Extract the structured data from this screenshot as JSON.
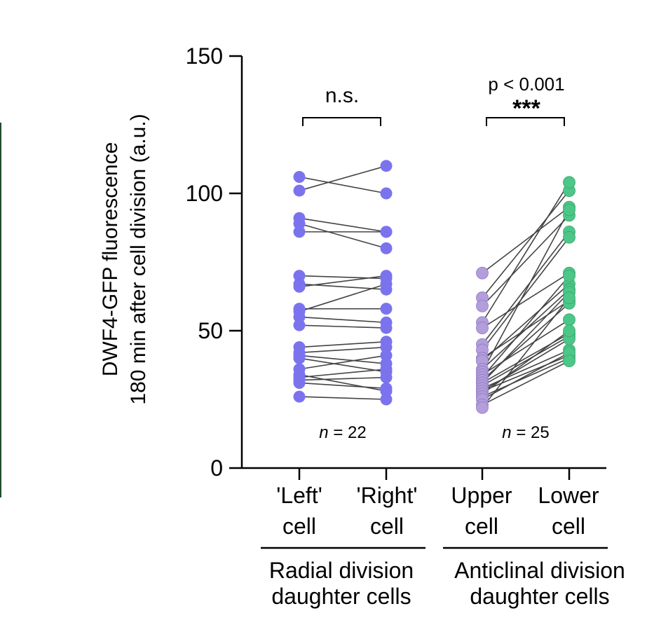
{
  "chart_data": {
    "type": "scatter",
    "ylabel_line1": "DWF4-GFP fluorescence",
    "ylabel_line2": "180 min after cell division (a.u.)",
    "ylim": [
      0,
      150
    ],
    "yticks": [
      "0",
      "50",
      "100",
      "150"
    ],
    "categories": [
      {
        "line1": "'Left'",
        "line2": "cell"
      },
      {
        "line1": "'Right'",
        "line2": "cell"
      },
      {
        "line1": "Upper",
        "line2": "cell"
      },
      {
        "line1": "Lower",
        "line2": "cell"
      }
    ],
    "groups": [
      {
        "line1": "Radial division",
        "line2": "daughter cells"
      },
      {
        "line1": "Anticlinal division",
        "line2": "daughter cells"
      }
    ],
    "annotations": {
      "radial_sig": "n.s.",
      "anticlinal_p": "p < 0.001",
      "anticlinal_stars": "***"
    },
    "n_labels": [
      {
        "italic": "n",
        "rest": " = 22"
      },
      {
        "italic": "n",
        "rest": " = 25"
      }
    ],
    "colors": {
      "radial": "#7B73EE",
      "upper": "#B39DDB",
      "lower": "#4CC787",
      "line": "#444444"
    },
    "pairs": {
      "radial": [
        [
          106,
          100
        ],
        [
          101,
          110
        ],
        [
          91,
          86
        ],
        [
          89,
          80
        ],
        [
          86,
          86
        ],
        [
          70,
          69
        ],
        [
          67,
          65
        ],
        [
          66,
          70
        ],
        [
          58,
          58
        ],
        [
          57,
          67
        ],
        [
          55,
          53
        ],
        [
          52,
          51
        ],
        [
          44,
          46
        ],
        [
          42,
          44
        ],
        [
          41,
          38
        ],
        [
          40,
          35
        ],
        [
          36,
          41
        ],
        [
          34,
          28
        ],
        [
          33,
          36
        ],
        [
          32,
          33
        ],
        [
          31,
          29
        ],
        [
          26,
          25
        ]
      ],
      "anticlinal": [
        [
          71,
          95
        ],
        [
          62,
          101
        ],
        [
          59,
          92
        ],
        [
          53,
          104
        ],
        [
          51,
          71
        ],
        [
          45,
          86
        ],
        [
          43,
          84
        ],
        [
          40,
          61
        ],
        [
          39,
          67
        ],
        [
          36,
          65
        ],
        [
          35,
          94
        ],
        [
          34,
          54
        ],
        [
          33,
          70
        ],
        [
          32,
          60
        ],
        [
          31,
          64
        ],
        [
          31,
          49
        ],
        [
          30,
          48
        ],
        [
          29,
          43
        ],
        [
          28,
          41
        ],
        [
          28,
          47
        ],
        [
          27,
          50
        ],
        [
          26,
          40
        ],
        [
          25,
          42
        ],
        [
          23,
          39
        ],
        [
          22,
          62
        ]
      ]
    }
  }
}
